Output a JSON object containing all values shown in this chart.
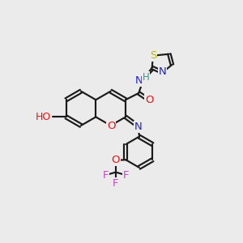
{
  "background_color": "#ebebeb",
  "bond_color": "#1a1a1a",
  "atom_colors": {
    "O": "#ee1111",
    "N": "#2222cc",
    "S": "#bbbb00",
    "F": "#cc44cc",
    "H_atom": "#339999",
    "C": "#1a1a1a"
  },
  "figsize": [
    3.0,
    3.0
  ],
  "dpi": 100
}
